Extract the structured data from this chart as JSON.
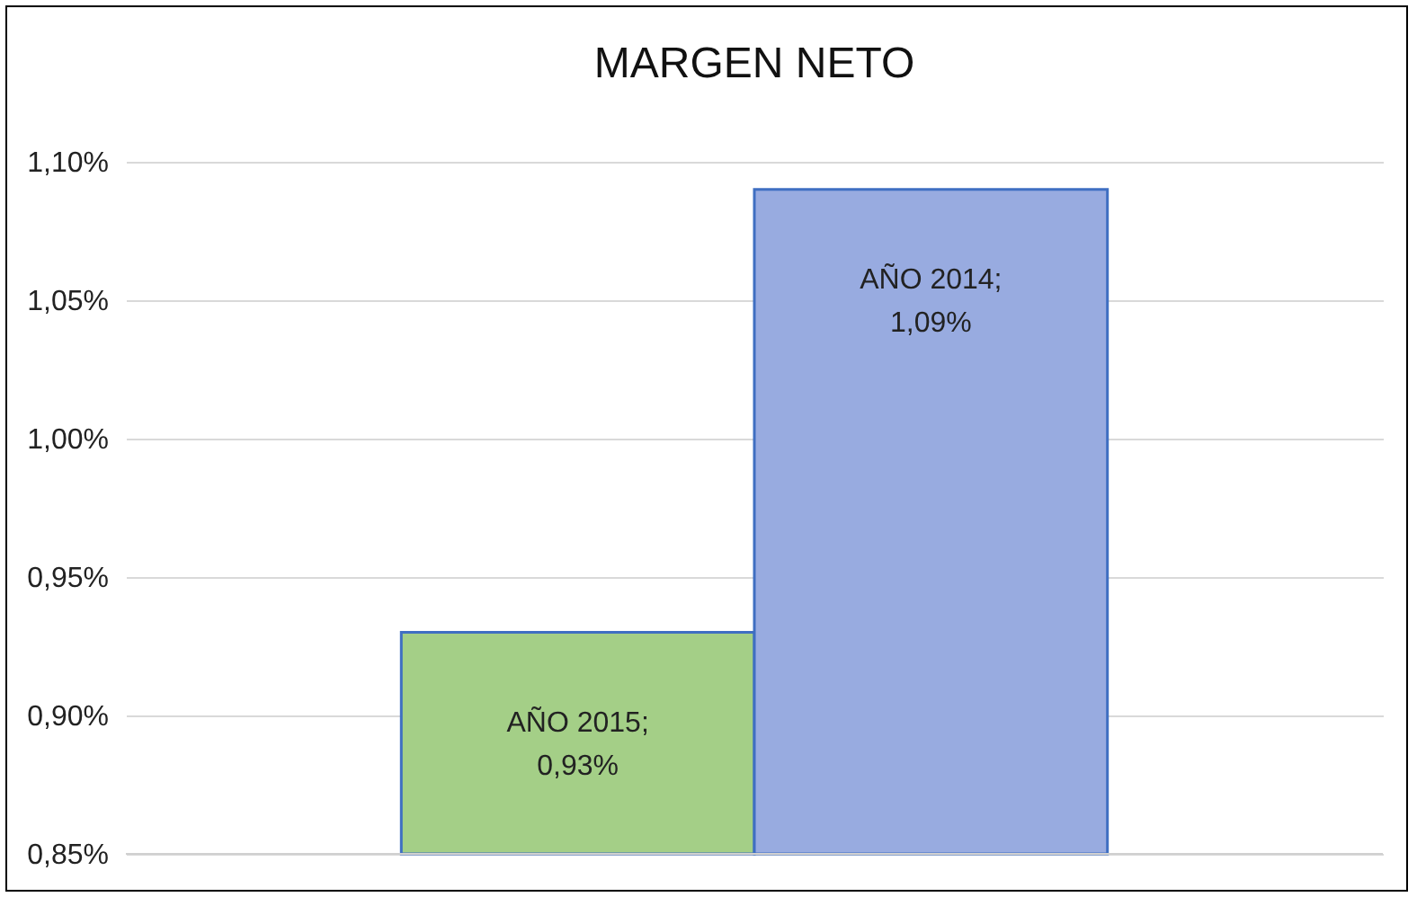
{
  "chart_data": {
    "type": "bar",
    "title": "MARGEN NETO",
    "categories": [
      null,
      null
    ],
    "values": [
      0.93,
      1.09
    ],
    "colors": [
      "#a4cf87",
      "#98abe0"
    ],
    "value_labels": [
      "AÑO 2015; 0,93%",
      "AÑO 2014; 1,09%"
    ],
    "ylim": [
      0.85,
      1.1
    ],
    "yticks": [
      {
        "value": 0.85,
        "label": "0,85%"
      },
      {
        "value": 0.9,
        "label": "0,90%"
      },
      {
        "value": 0.95,
        "label": "0,95%"
      },
      {
        "value": 1.0,
        "label": "1,00%"
      },
      {
        "value": 1.05,
        "label": "1,05%"
      },
      {
        "value": 1.1,
        "label": "1,10%"
      }
    ],
    "grid": "y",
    "tick_labels": "y"
  }
}
